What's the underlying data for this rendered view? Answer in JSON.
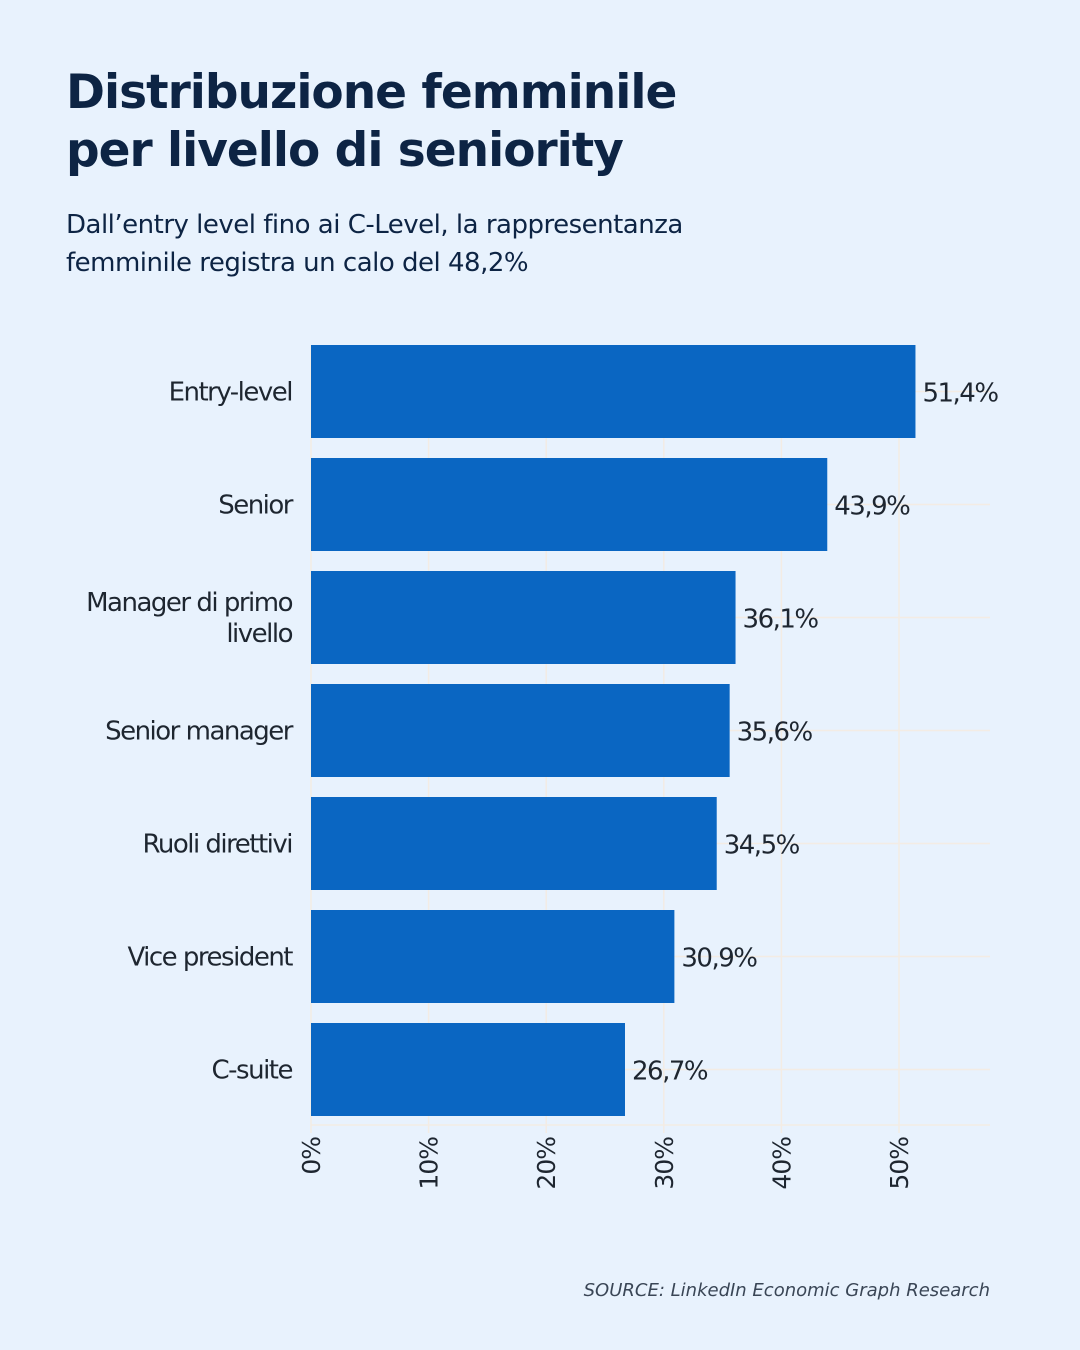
{
  "title_lines": [
    "Distribuzione femminile",
    "per livello di seniority"
  ],
  "subtitle_lines": [
    "Dall’entry level fino ai C-Level, la rappresentanza",
    "femminile registra un calo del 48,2%"
  ],
  "source": "SOURCE: LinkedIn Economic Graph Research",
  "chart_data": {
    "type": "bar",
    "orientation": "horizontal",
    "categories": [
      [
        "Entry-level"
      ],
      [
        "Senior"
      ],
      [
        "Manager di primo",
        "livello"
      ],
      [
        "Senior manager"
      ],
      [
        "Ruoli direttivi"
      ],
      [
        "Vice president"
      ],
      [
        "C-suite"
      ]
    ],
    "values": [
      51.4,
      43.9,
      36.1,
      35.6,
      34.5,
      30.9,
      26.7
    ],
    "data_labels": [
      "51,4%",
      "43,9%",
      "36,1%",
      "35,6%",
      "34,5%",
      "30,9%",
      "26,7%"
    ],
    "xlim": [
      0,
      57
    ],
    "xticks": [
      0,
      10,
      20,
      30,
      40,
      50
    ],
    "xtick_labels": [
      "0%",
      "10%",
      "20%",
      "30%",
      "40%",
      "50%"
    ],
    "grid": true,
    "bar_color": "#0a66c2",
    "grid_color": "#f3ece4"
  }
}
